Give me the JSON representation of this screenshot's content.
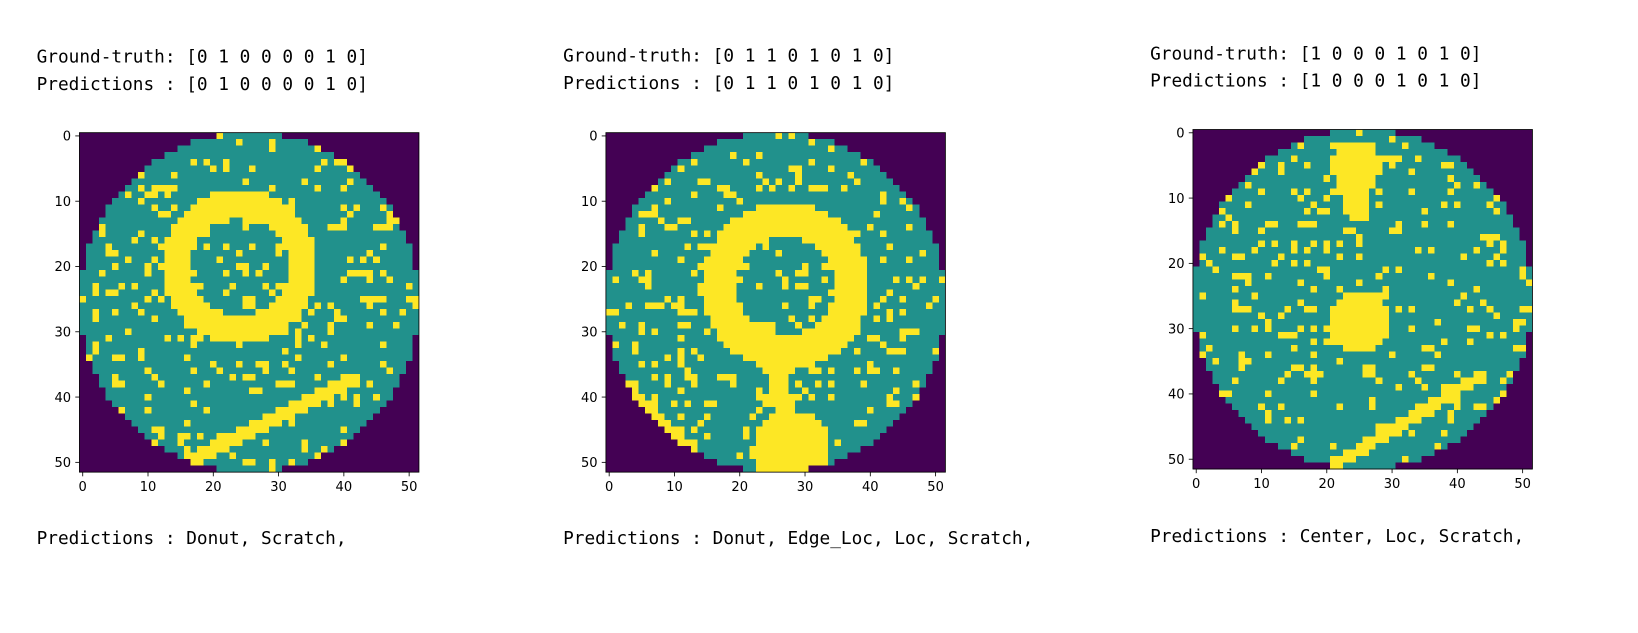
{
  "panels": [
    {
      "ground_truth": "Ground-truth: [0 1 0 0 0 0 1 0]",
      "predictions_vector": "Predictions : [0 1 0 0 0 0 1 0]",
      "xlim": [
        -0.5,
        51.5
      ],
      "ylim": [
        51.5,
        -0.5
      ],
      "xticks": [
        0,
        10,
        20,
        30,
        40,
        50
      ],
      "yticks": [
        0,
        10,
        20,
        30,
        40,
        50
      ],
      "predictions_text": "Predictions : Donut, Scratch,"
    },
    {
      "ground_truth": "Ground-truth: [0 1 1 0 1 0 1 0]",
      "predictions_vector": "Predictions : [0 1 1 0 1 0 1 0]",
      "xlim": [
        -0.5,
        51.5
      ],
      "ylim": [
        51.5,
        -0.5
      ],
      "xticks": [
        0,
        10,
        20,
        30,
        40,
        50
      ],
      "yticks": [
        0,
        10,
        20,
        30,
        40,
        50
      ],
      "predictions_text": "Predictions : Donut, Edge_Loc, Loc, Scratch,"
    },
    {
      "ground_truth": "Ground-truth: [1 0 0 0 1 0 1 0]",
      "predictions_vector": "Predictions : [1 0 0 0 1 0 1 0]",
      "xlim": [
        -0.5,
        51.5
      ],
      "ylim": [
        51.5,
        -0.5
      ],
      "xticks": [
        0,
        10,
        20,
        30,
        40,
        50
      ],
      "yticks": [
        0,
        10,
        20,
        30,
        40,
        50
      ],
      "predictions_text": "Predictions : Center, Loc, Scratch,"
    }
  ]
}
